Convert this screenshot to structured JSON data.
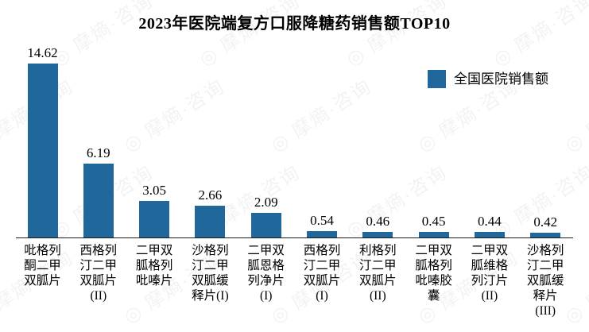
{
  "title": "2023年医院端复方口服降糖药销售额TOP10",
  "legend": {
    "label": "全国医院销售额",
    "color": "#20689C"
  },
  "watermark": {
    "text": "摩熵·咨询",
    "emblem": "◎"
  },
  "chart_data": {
    "type": "bar",
    "title": "2023年医院端复方口服降糖药销售额TOP10",
    "series_name": "全国医院销售额",
    "categories": [
      "吡格列酮二甲双胍片",
      "西格列汀二甲双胍片(II)",
      "二甲双胍格列吡嗪片",
      "沙格列汀二甲双胍缓释片(I)",
      "二甲双胍恩格列净片(I)",
      "西格列汀二甲双胍片(I)",
      "利格列汀二甲双胍片(II)",
      "二甲双胍格列吡嗪胶囊",
      "二甲双胍维格列汀片(II)",
      "沙格列汀二甲双胍缓释片(III)"
    ],
    "category_lines": [
      [
        "吡格列",
        "酮二甲",
        "双胍片"
      ],
      [
        "西格列",
        "汀二甲",
        "双胍片",
        "(II)"
      ],
      [
        "二甲双",
        "胍格列",
        "吡嗪片"
      ],
      [
        "沙格列",
        "汀二甲",
        "双胍缓",
        "释片(I)"
      ],
      [
        "二甲双",
        "胍恩格",
        "列净片",
        "(I)"
      ],
      [
        "西格列",
        "汀二甲",
        "双胍片",
        "(I)"
      ],
      [
        "利格列",
        "汀二甲",
        "双胍片",
        "(II)"
      ],
      [
        "二甲双",
        "胍格列",
        "吡嗪胶",
        "囊"
      ],
      [
        "二甲双",
        "胍维格",
        "列汀片",
        "(II)"
      ],
      [
        "沙格列",
        "汀二甲",
        "双胍缓",
        "释片",
        "(III)"
      ]
    ],
    "values": [
      14.62,
      6.19,
      3.05,
      2.66,
      2.09,
      0.54,
      0.46,
      0.45,
      0.44,
      0.42
    ],
    "value_labels": [
      "14.62",
      "6.19",
      "3.05",
      "2.66",
      "2.09",
      "0.54",
      "0.46",
      "0.45",
      "0.44",
      "0.42"
    ],
    "bar_color": "#20689C",
    "xlabel": "",
    "ylabel": "",
    "ylim": [
      0,
      16
    ],
    "grid": false,
    "legend_position": "top-right",
    "value_labels_shown": true,
    "y_axis_shown": false
  }
}
